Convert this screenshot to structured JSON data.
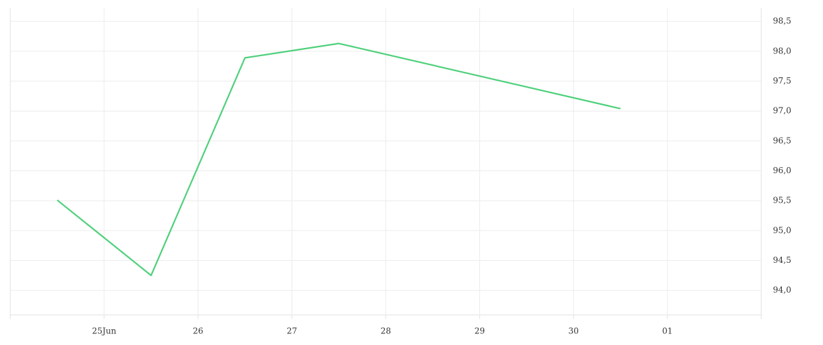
{
  "chart_data": {
    "type": "line",
    "x": [
      24.5,
      25.5,
      26.5,
      27.5,
      30.5
    ],
    "series": [
      {
        "color": "#4fd07b",
        "values": [
          95.51,
          94.25,
          97.89,
          98.13,
          97.04
        ]
      }
    ],
    "xlim": [
      24,
      32
    ],
    "xticks": [
      {
        "value": 25,
        "label": "25Jun"
      },
      26,
      27,
      28,
      29,
      30,
      {
        "value": 31,
        "label": "01"
      }
    ],
    "ylim": [
      93.59,
      98.72
    ],
    "yticks": [
      {
        "value": 94.0,
        "label": "94,0"
      },
      {
        "value": 94.5,
        "label": "94,5"
      },
      {
        "value": 95.0,
        "label": "95,0"
      },
      {
        "value": 95.5,
        "label": "95,5"
      },
      {
        "value": 96.0,
        "label": "96,0"
      },
      {
        "value": 96.5,
        "label": "96,5"
      },
      {
        "value": 97.0,
        "label": "97,0"
      },
      {
        "value": 97.5,
        "label": "97,5"
      },
      {
        "value": 98.0,
        "label": "98,0"
      },
      {
        "value": 98.5,
        "label": "98,5"
      }
    ],
    "grid": true
  }
}
